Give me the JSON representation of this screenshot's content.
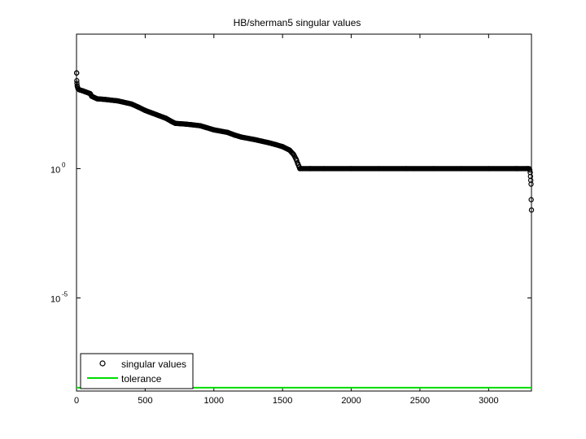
{
  "chart_data": {
    "type": "scatter",
    "title": "HB/sherman5 singular values",
    "xlabel": "",
    "ylabel": "",
    "xlim": [
      0,
      3312
    ],
    "ylim_log10": [
      -8.6,
      5.2
    ],
    "y_scale": "log",
    "x_ticks": [
      0,
      500,
      1000,
      1500,
      2000,
      2500,
      3000
    ],
    "x_tick_labels": [
      "0",
      "500",
      "1000",
      "1500",
      "2000",
      "2500",
      "3000"
    ],
    "y_ticks_exponent": [
      0,
      -5
    ],
    "y_tick_base": "10",
    "y_tick_exponents": [
      "0",
      "-5"
    ],
    "grid": false,
    "legend_placement": "bottom-left",
    "series": [
      {
        "name": "singular values",
        "marker": "circle-open",
        "color": "#000000",
        "x": [
          1,
          2,
          3,
          5,
          10,
          20,
          50,
          100,
          110,
          150,
          200,
          300,
          400,
          450,
          500,
          550,
          600,
          650,
          700,
          720,
          800,
          900,
          950,
          1000,
          1100,
          1150,
          1200,
          1300,
          1400,
          1450,
          1500,
          1550,
          1580,
          1600,
          1610,
          1620,
          1625,
          1700,
          1800,
          2000,
          2200,
          2400,
          2600,
          2800,
          3000,
          3200,
          3280,
          3290,
          3295,
          3300,
          3303,
          3305,
          3307,
          3309,
          3310,
          3312
        ],
        "log10_y": [
          3.7,
          3.4,
          3.3,
          3.2,
          3.1,
          3.05,
          3.0,
          2.9,
          2.8,
          2.7,
          2.68,
          2.62,
          2.5,
          2.38,
          2.25,
          2.15,
          2.05,
          1.95,
          1.8,
          1.75,
          1.72,
          1.66,
          1.58,
          1.5,
          1.4,
          1.3,
          1.22,
          1.12,
          1.0,
          0.93,
          0.85,
          0.72,
          0.55,
          0.35,
          0.2,
          0.08,
          0.0,
          0.0,
          0.0,
          0.0,
          0.0,
          0.0,
          0.0,
          0.0,
          0.0,
          0.0,
          0.0,
          0.0,
          0.0,
          -0.05,
          -0.15,
          -0.3,
          -0.45,
          -0.6,
          -1.2,
          -1.6
        ]
      },
      {
        "name": "tolerance",
        "style": "line",
        "color": "#00dd00",
        "log10_value": -8.47
      }
    ]
  }
}
